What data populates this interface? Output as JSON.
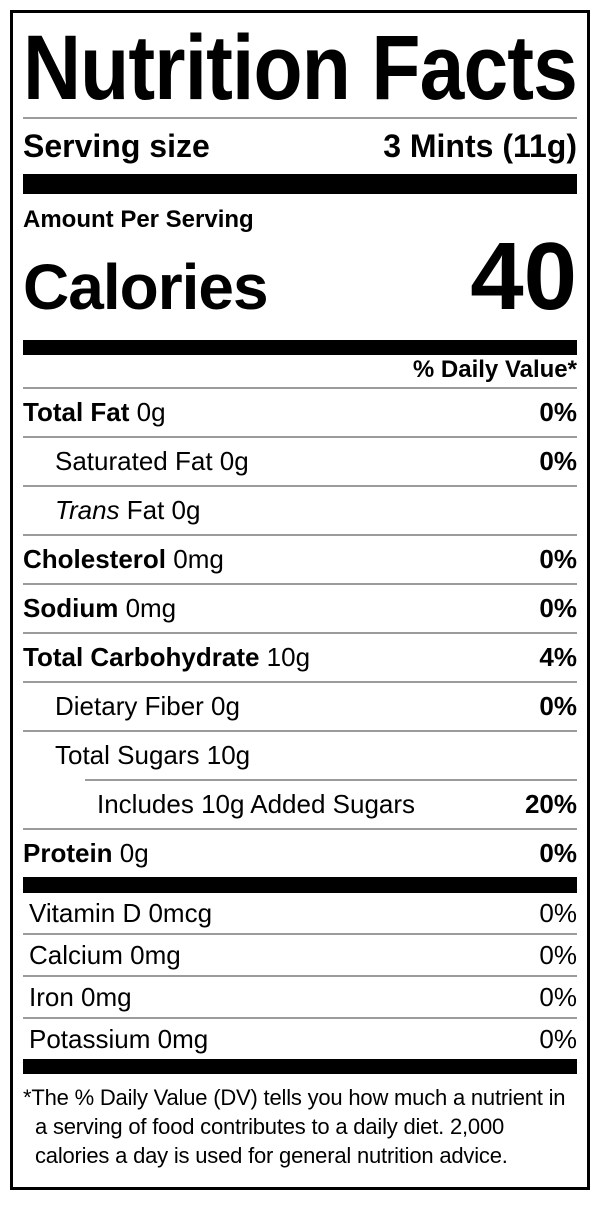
{
  "label": {
    "title": "Nutrition Facts",
    "serving": {
      "label": "Serving size",
      "value": "3 Mints (11g)"
    },
    "amount_per_serving": "Amount Per Serving",
    "calories": {
      "label": "Calories",
      "value": "40"
    },
    "daily_value_header": "% Daily Value*",
    "rows": [
      {
        "bold": "Total Fat",
        "rest": " 0g",
        "dv": "0%"
      },
      {
        "bold": "",
        "rest": "Saturated Fat 0g",
        "dv": "0%"
      },
      {
        "italic": "Trans",
        "rest": " Fat 0g",
        "dv": ""
      },
      {
        "bold": "Cholesterol",
        "rest": " 0mg",
        "dv": "0%"
      },
      {
        "bold": "Sodium",
        "rest": " 0mg",
        "dv": "0%"
      },
      {
        "bold": "Total Carbohydrate",
        "rest": " 10g",
        "dv": "4%"
      },
      {
        "bold": "",
        "rest": "Dietary Fiber 0g",
        "dv": "0%"
      },
      {
        "bold": "",
        "rest": "Total Sugars 10g",
        "dv": ""
      },
      {
        "bold": "",
        "rest": "Includes 10g Added Sugars",
        "dv": "20%"
      },
      {
        "bold": "Protein",
        "rest": " 0g",
        "dv": "0%"
      }
    ],
    "vitamins": [
      {
        "name": "Vitamin D 0mcg",
        "dv": "0%"
      },
      {
        "name": "Calcium 0mg",
        "dv": "0%"
      },
      {
        "name": "Iron 0mg",
        "dv": "0%"
      },
      {
        "name": "Potassium 0mg",
        "dv": "0%"
      }
    ],
    "footnote": {
      "symbol": "*",
      "text": "The % Daily Value (DV) tells you how much a nutrient in a serving of food contributes to a daily diet. 2,000 calories a day is used for general nutrition advice."
    }
  }
}
